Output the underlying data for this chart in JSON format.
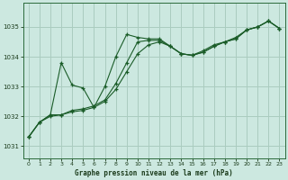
{
  "title": "Graphe pression niveau de la mer (hPa)",
  "bg_color": "#cce8e0",
  "grid_color": "#aaccbf",
  "line_color": "#1a5c28",
  "line1": [
    1031.3,
    1031.8,
    1032.0,
    1032.05,
    1032.2,
    1032.25,
    1032.35,
    1032.55,
    1033.1,
    1033.8,
    1034.5,
    1034.55,
    1034.55,
    1034.35,
    1034.1,
    1034.05,
    1034.15,
    1034.35,
    1034.5,
    1034.6,
    1034.9,
    1035.0,
    1035.2,
    1034.95
  ],
  "line2": [
    1031.3,
    1031.8,
    1032.05,
    1032.05,
    1032.15,
    1032.2,
    1032.3,
    1032.5,
    1032.9,
    1033.5,
    1034.1,
    1034.4,
    1034.5,
    1034.35,
    1034.1,
    1034.05,
    1034.15,
    1034.35,
    1034.5,
    1034.6,
    1034.9,
    1035.0,
    1035.2,
    1034.95
  ],
  "line3": [
    1031.3,
    1031.8,
    1032.05,
    1033.8,
    1033.05,
    1032.95,
    1032.3,
    1033.0,
    1034.0,
    1034.75,
    1034.65,
    1034.6,
    1034.6,
    1034.35,
    1034.1,
    1034.05,
    1034.2,
    1034.4,
    1034.5,
    1034.65,
    1034.9,
    1035.0,
    1035.2,
    1034.95
  ],
  "xlim": [
    -0.5,
    23.5
  ],
  "ylim": [
    1030.6,
    1035.8
  ],
  "yticks": [
    1031,
    1032,
    1033,
    1034,
    1035
  ],
  "xticks": [
    0,
    1,
    2,
    3,
    4,
    5,
    6,
    7,
    8,
    9,
    10,
    11,
    12,
    13,
    14,
    15,
    16,
    17,
    18,
    19,
    20,
    21,
    22,
    23
  ]
}
